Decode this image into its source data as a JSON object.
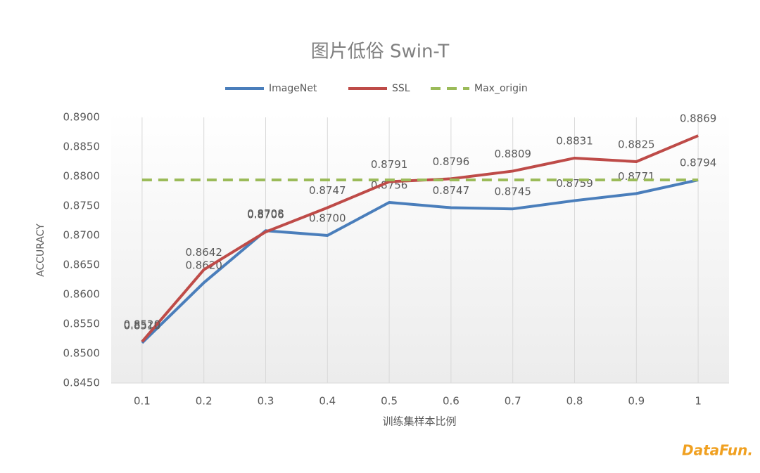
{
  "chart_data": {
    "type": "line",
    "title": "图片低俗 Swin-T",
    "x_label": "训练集样本比例",
    "y_label": "ACCURACY",
    "categories": [
      "0.1",
      "0.2",
      "0.3",
      "0.4",
      "0.5",
      "0.6",
      "0.7",
      "0.8",
      "0.9",
      "1"
    ],
    "series": [
      {
        "name": "ImageNet",
        "color": "#4a7ebb",
        "values": [
          0.8518,
          0.862,
          0.8708,
          0.87,
          0.8756,
          0.8747,
          0.8745,
          0.8759,
          0.8771,
          0.8794
        ],
        "value_labels": [
          "0.8518",
          "0.8620",
          "0.8708",
          "0.8700",
          "0.8756",
          "0.8747",
          "0.8745",
          "0.8759",
          "0.8771",
          "0.8794"
        ]
      },
      {
        "name": "SSL",
        "color": "#be4b48",
        "values": [
          0.852,
          0.8642,
          0.8706,
          0.8747,
          0.8791,
          0.8796,
          0.8809,
          0.8831,
          0.8825,
          0.8869
        ],
        "value_labels": [
          "0.8520",
          "0.8642",
          "0.8706",
          "0.8747",
          "0.8791",
          "0.8796",
          "0.8809",
          "0.8831",
          "0.8825",
          "0.8869"
        ]
      },
      {
        "name": "Max_origin",
        "color": "#9bbb59",
        "dashed": true,
        "values": [
          0.8794,
          0.8794,
          0.8794,
          0.8794,
          0.8794,
          0.8794,
          0.8794,
          0.8794,
          0.8794,
          0.8794
        ]
      }
    ],
    "ylim": [
      0.845,
      0.89
    ],
    "yticks": [
      {
        "value": 0.845,
        "label": "0.8450"
      },
      {
        "value": 0.85,
        "label": "0.8500"
      },
      {
        "value": 0.855,
        "label": "0.8550"
      },
      {
        "value": 0.86,
        "label": "0.8600"
      },
      {
        "value": 0.865,
        "label": "0.8650"
      },
      {
        "value": 0.87,
        "label": "0.8700"
      },
      {
        "value": 0.875,
        "label": "0.8750"
      },
      {
        "value": 0.88,
        "label": "0.8800"
      },
      {
        "value": 0.885,
        "label": "0.8850"
      },
      {
        "value": 0.89,
        "label": "0.8900"
      }
    ],
    "grid": true,
    "legend": "top",
    "watermark": "DataFun."
  }
}
